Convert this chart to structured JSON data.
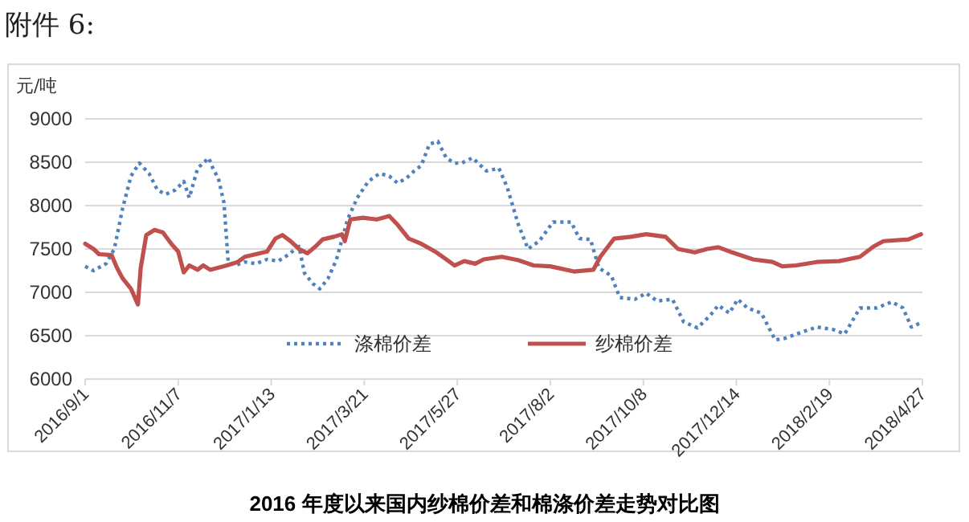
{
  "chart_data": {
    "type": "line",
    "title": "2016 年度以来国内纱棉价差和棉涤价差走势对比图",
    "ylabel": "元/吨",
    "annotations": [
      "附件 6:"
    ],
    "xlim": [
      "2016-09-01",
      "2018-04-27"
    ],
    "xticks": [
      {
        "value": "2016-09-01",
        "label": "2016/9/1"
      },
      {
        "value": "2016-11-07",
        "label": "2016/11/7"
      },
      {
        "value": "2017-01-13",
        "label": "2017/1/13"
      },
      {
        "value": "2017-03-21",
        "label": "2017/3/21"
      },
      {
        "value": "2017-05-27",
        "label": "2017/5/27"
      },
      {
        "value": "2017-08-02",
        "label": "2017/8/2"
      },
      {
        "value": "2017-10-08",
        "label": "2017/10/8"
      },
      {
        "value": "2017-12-14",
        "label": "2017/12/14"
      },
      {
        "value": "2018-02-19",
        "label": "2018/2/19"
      },
      {
        "value": "2018-04-27",
        "label": "2018/4/27"
      }
    ],
    "ylim": [
      6000,
      9000
    ],
    "yticks": [
      6000,
      6500,
      7000,
      7500,
      8000,
      8500,
      9000
    ],
    "grid": "y",
    "legend": "bottom",
    "marker": "none",
    "series": [
      {
        "name": "涤棉价差",
        "color": "#4f81bd",
        "line_style": "dotted",
        "x": [
          "2016-09-01",
          "2016-09-07",
          "2016-09-16",
          "2016-09-22",
          "2016-09-28",
          "2016-10-04",
          "2016-10-10",
          "2016-10-17",
          "2016-10-23",
          "2016-10-29",
          "2016-11-05",
          "2016-11-11",
          "2016-11-15",
          "2016-11-21",
          "2016-11-29",
          "2016-12-02",
          "2016-12-06",
          "2016-12-10",
          "2016-12-13",
          "2016-12-18",
          "2016-12-25",
          "2017-01-02",
          "2017-01-10",
          "2017-01-18",
          "2017-01-25",
          "2017-02-02",
          "2017-02-06",
          "2017-02-12",
          "2017-02-17",
          "2017-02-23",
          "2017-03-01",
          "2017-03-09",
          "2017-03-16",
          "2017-03-24",
          "2017-04-01",
          "2017-04-08",
          "2017-04-14",
          "2017-04-20",
          "2017-04-26",
          "2017-05-01",
          "2017-05-07",
          "2017-05-13",
          "2017-05-19",
          "2017-05-25",
          "2017-05-30",
          "2017-06-07",
          "2017-06-17",
          "2017-06-26",
          "2017-07-02",
          "2017-07-10",
          "2017-07-17",
          "2017-07-25",
          "2017-08-04",
          "2017-08-17",
          "2017-08-23",
          "2017-08-31",
          "2017-09-06",
          "2017-09-15",
          "2017-09-21",
          "2017-10-02",
          "2017-10-10",
          "2017-10-18",
          "2017-10-29",
          "2017-11-06",
          "2017-11-16",
          "2017-11-25",
          "2017-12-01",
          "2017-12-09",
          "2017-12-15",
          "2017-12-22",
          "2018-01-01",
          "2018-01-11",
          "2018-01-18",
          "2018-01-30",
          "2018-02-10",
          "2018-02-22",
          "2018-03-02",
          "2018-03-13",
          "2018-03-25",
          "2018-04-05",
          "2018-04-13",
          "2018-04-19",
          "2018-04-26"
        ],
        "values": [
          7300,
          7250,
          7330,
          7500,
          7970,
          8340,
          8490,
          8370,
          8180,
          8130,
          8180,
          8280,
          8090,
          8430,
          8550,
          8430,
          8310,
          8030,
          7350,
          7310,
          7350,
          7330,
          7380,
          7360,
          7430,
          7530,
          7220,
          7100,
          7040,
          7160,
          7380,
          7840,
          8090,
          8280,
          8370,
          8340,
          8260,
          8310,
          8400,
          8460,
          8710,
          8740,
          8550,
          8490,
          8490,
          8550,
          8400,
          8430,
          8210,
          7780,
          7500,
          7590,
          7810,
          7810,
          7620,
          7610,
          7280,
          7190,
          6940,
          6920,
          6990,
          6900,
          6920,
          6660,
          6590,
          6730,
          6850,
          6760,
          6920,
          6820,
          6760,
          6450,
          6470,
          6540,
          6600,
          6570,
          6520,
          6820,
          6820,
          6890,
          6820,
          6600,
          6650
        ]
      },
      {
        "name": "纱棉价差",
        "color": "#c0504d",
        "line_style": "solid",
        "x": [
          "2016-09-01",
          "2016-09-07",
          "2016-09-11",
          "2016-09-20",
          "2016-09-24",
          "2016-09-28",
          "2016-10-04",
          "2016-10-09",
          "2016-10-11",
          "2016-10-15",
          "2016-10-21",
          "2016-10-27",
          "2016-11-02",
          "2016-11-07",
          "2016-11-11",
          "2016-11-15",
          "2016-11-21",
          "2016-11-25",
          "2016-11-30",
          "2016-12-10",
          "2016-12-20",
          "2016-12-25",
          "2017-01-02",
          "2017-01-10",
          "2017-01-16",
          "2017-01-21",
          "2017-01-27",
          "2017-02-02",
          "2017-02-08",
          "2017-02-14",
          "2017-02-19",
          "2017-02-27",
          "2017-03-05",
          "2017-03-07",
          "2017-03-11",
          "2017-03-20",
          "2017-03-30",
          "2017-04-08",
          "2017-04-14",
          "2017-04-22",
          "2017-05-01",
          "2017-05-11",
          "2017-05-19",
          "2017-05-25",
          "2017-06-01",
          "2017-06-09",
          "2017-06-15",
          "2017-06-28",
          "2017-07-10",
          "2017-07-21",
          "2017-08-02",
          "2017-08-19",
          "2017-09-02",
          "2017-09-07",
          "2017-09-17",
          "2017-09-29",
          "2017-10-10",
          "2017-10-24",
          "2017-11-02",
          "2017-11-14",
          "2017-11-23",
          "2017-12-01",
          "2017-12-11",
          "2017-12-26",
          "2018-01-09",
          "2018-01-16",
          "2018-01-26",
          "2018-02-10",
          "2018-02-26",
          "2018-03-13",
          "2018-03-23",
          "2018-03-30",
          "2018-04-17",
          "2018-04-26"
        ],
        "values": [
          7560,
          7500,
          7440,
          7430,
          7280,
          7160,
          7040,
          6860,
          7280,
          7660,
          7720,
          7690,
          7560,
          7470,
          7230,
          7310,
          7260,
          7310,
          7260,
          7300,
          7350,
          7410,
          7440,
          7470,
          7620,
          7660,
          7590,
          7500,
          7450,
          7530,
          7610,
          7640,
          7670,
          7590,
          7840,
          7860,
          7840,
          7880,
          7780,
          7620,
          7560,
          7470,
          7380,
          7310,
          7360,
          7330,
          7380,
          7410,
          7370,
          7310,
          7300,
          7240,
          7260,
          7410,
          7620,
          7640,
          7670,
          7640,
          7500,
          7460,
          7500,
          7520,
          7460,
          7380,
          7350,
          7300,
          7310,
          7350,
          7360,
          7410,
          7530,
          7590,
          7610,
          7670
        ]
      }
    ]
  }
}
